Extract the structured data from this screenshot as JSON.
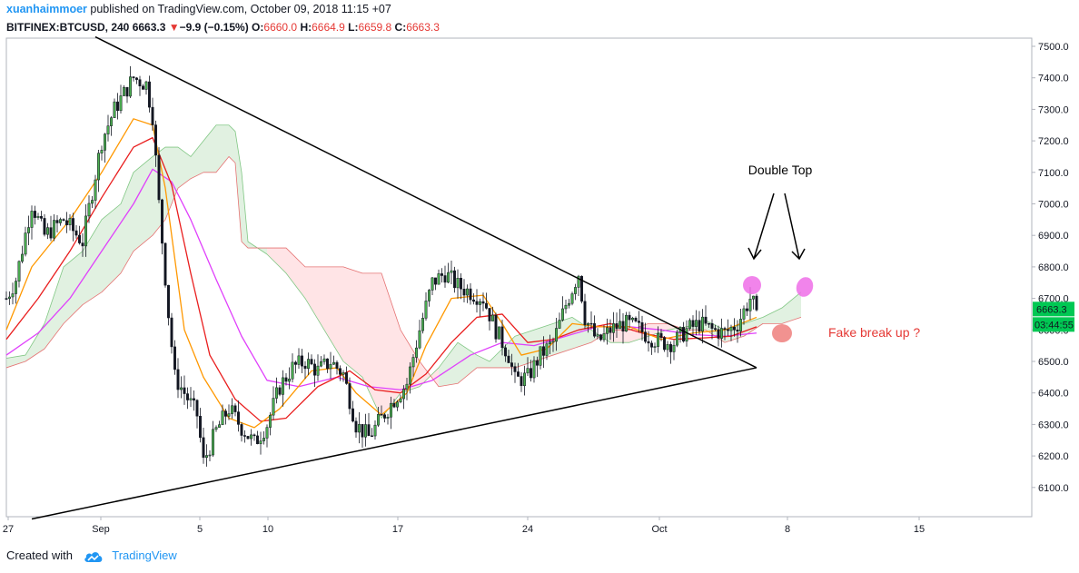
{
  "header": {
    "author": "xuanhaimmoer",
    "published_text": "published on TradingView.com, October 09, 2018 11:15 +07",
    "symbol": "BITFINEX:BTCUSD, 240",
    "last": "6663.3",
    "change_arrow": "▼",
    "change": "−9.9 (−0.15%)",
    "o_label": "O:",
    "o": "6660.0",
    "h_label": "H:",
    "h": "6664.9",
    "l_label": "L:",
    "l": "6659.8",
    "c_label": "C:",
    "c": "6663.3"
  },
  "footer": {
    "created_with": "Created with",
    "brand": "TradingView",
    "brand_icon": "tradingview-cloud-icon"
  },
  "colors": {
    "up": "#4caf50",
    "down": "#131722",
    "ema_fast": "#ff9800",
    "ema_mid": "#e91e1e",
    "ema_slow": "#e040fb",
    "cloud_bull": "#c8e6c9",
    "cloud_bear": "#ffcdd2",
    "price_label": "#00c853",
    "annotation_red": "#e53935",
    "marker_pink": "#ee6ee8"
  },
  "chart_data": {
    "type": "candlestick",
    "ylim": [
      6000,
      7550
    ],
    "y_ticks": [
      "7500.0",
      "7400.0",
      "7300.0",
      "7200.0",
      "7100.0",
      "7000.0",
      "6900.0",
      "6800.0",
      "6700.0",
      "6600.0",
      "6500.0",
      "6400.0",
      "6300.0",
      "6200.0",
      "6100.0"
    ],
    "x_ticks": [
      "27",
      "Sep",
      "5",
      "10",
      "17",
      "24",
      "Oct",
      "8",
      "15"
    ],
    "price_label": "6663.3",
    "countdown_label": "03:44:55",
    "annotations": {
      "double_top": "Double Top",
      "fake_breakout": "Fake break up ?"
    },
    "close_anchors": [
      [
        0,
        6700
      ],
      [
        3,
        6760
      ],
      [
        8,
        7000
      ],
      [
        12,
        6900
      ],
      [
        18,
        6950
      ],
      [
        24,
        6880
      ],
      [
        30,
        7200
      ],
      [
        34,
        7300
      ],
      [
        40,
        7400
      ],
      [
        44,
        7380
      ],
      [
        46,
        7280
      ],
      [
        48,
        7000
      ],
      [
        51,
        6650
      ],
      [
        53,
        6450
      ],
      [
        56,
        6400
      ],
      [
        60,
        6330
      ],
      [
        62,
        6180
      ],
      [
        66,
        6280
      ],
      [
        70,
        6350
      ],
      [
        74,
        6290
      ],
      [
        78,
        6240
      ],
      [
        82,
        6300
      ],
      [
        86,
        6420
      ],
      [
        90,
        6480
      ],
      [
        94,
        6500
      ],
      [
        98,
        6470
      ],
      [
        102,
        6500
      ],
      [
        106,
        6460
      ],
      [
        110,
        6300
      ],
      [
        114,
        6260
      ],
      [
        118,
        6320
      ],
      [
        122,
        6380
      ],
      [
        126,
        6430
      ],
      [
        130,
        6600
      ],
      [
        134,
        6750
      ],
      [
        138,
        6780
      ],
      [
        142,
        6740
      ],
      [
        146,
        6720
      ],
      [
        150,
        6700
      ],
      [
        154,
        6600
      ],
      [
        158,
        6520
      ],
      [
        160,
        6440
      ],
      [
        164,
        6450
      ],
      [
        168,
        6520
      ],
      [
        172,
        6560
      ],
      [
        176,
        6680
      ],
      [
        180,
        6780
      ],
      [
        182,
        6640
      ],
      [
        186,
        6560
      ],
      [
        190,
        6600
      ],
      [
        194,
        6620
      ],
      [
        198,
        6610
      ],
      [
        202,
        6580
      ],
      [
        206,
        6560
      ],
      [
        210,
        6560
      ],
      [
        214,
        6600
      ],
      [
        218,
        6620
      ],
      [
        222,
        6600
      ],
      [
        226,
        6590
      ],
      [
        230,
        6620
      ],
      [
        234,
        6700
      ],
      [
        236,
        6663
      ]
    ],
    "ema_fast": [
      [
        0,
        6600
      ],
      [
        8,
        6800
      ],
      [
        20,
        6950
      ],
      [
        30,
        7100
      ],
      [
        40,
        7270
      ],
      [
        46,
        7250
      ],
      [
        50,
        7050
      ],
      [
        56,
        6600
      ],
      [
        62,
        6450
      ],
      [
        70,
        6320
      ],
      [
        78,
        6290
      ],
      [
        86,
        6350
      ],
      [
        96,
        6470
      ],
      [
        104,
        6480
      ],
      [
        110,
        6400
      ],
      [
        118,
        6330
      ],
      [
        126,
        6400
      ],
      [
        132,
        6550
      ],
      [
        140,
        6700
      ],
      [
        150,
        6710
      ],
      [
        156,
        6620
      ],
      [
        162,
        6520
      ],
      [
        170,
        6540
      ],
      [
        178,
        6620
      ],
      [
        186,
        6610
      ],
      [
        196,
        6610
      ],
      [
        206,
        6570
      ],
      [
        216,
        6590
      ],
      [
        226,
        6600
      ],
      [
        236,
        6640
      ]
    ],
    "ema_mid": [
      [
        0,
        6570
      ],
      [
        10,
        6700
      ],
      [
        20,
        6850
      ],
      [
        30,
        7020
      ],
      [
        40,
        7180
      ],
      [
        46,
        7210
      ],
      [
        52,
        7060
      ],
      [
        58,
        6780
      ],
      [
        64,
        6520
      ],
      [
        72,
        6380
      ],
      [
        80,
        6310
      ],
      [
        88,
        6320
      ],
      [
        98,
        6420
      ],
      [
        108,
        6470
      ],
      [
        116,
        6410
      ],
      [
        124,
        6400
      ],
      [
        132,
        6460
      ],
      [
        140,
        6560
      ],
      [
        148,
        6640
      ],
      [
        156,
        6650
      ],
      [
        164,
        6560
      ],
      [
        172,
        6570
      ],
      [
        180,
        6600
      ],
      [
        190,
        6620
      ],
      [
        200,
        6590
      ],
      [
        210,
        6570
      ],
      [
        220,
        6575
      ],
      [
        228,
        6580
      ],
      [
        236,
        6610
      ]
    ],
    "ema_slow": [
      [
        0,
        6520
      ],
      [
        10,
        6590
      ],
      [
        20,
        6700
      ],
      [
        30,
        6850
      ],
      [
        40,
        7000
      ],
      [
        46,
        7110
      ],
      [
        52,
        7070
      ],
      [
        58,
        6950
      ],
      [
        66,
        6760
      ],
      [
        74,
        6580
      ],
      [
        82,
        6440
      ],
      [
        92,
        6420
      ],
      [
        104,
        6450
      ],
      [
        114,
        6420
      ],
      [
        124,
        6410
      ],
      [
        134,
        6440
      ],
      [
        146,
        6520
      ],
      [
        156,
        6560
      ],
      [
        166,
        6550
      ],
      [
        176,
        6580
      ],
      [
        186,
        6610
      ],
      [
        196,
        6610
      ],
      [
        206,
        6600
      ],
      [
        216,
        6585
      ],
      [
        226,
        6580
      ],
      [
        236,
        6590
      ]
    ],
    "cloud": [
      [
        0,
        6510,
        6480
      ],
      [
        6,
        6520,
        6500
      ],
      [
        12,
        6620,
        6540
      ],
      [
        18,
        6800,
        6620
      ],
      [
        24,
        6850,
        6680
      ],
      [
        30,
        6950,
        6720
      ],
      [
        36,
        7000,
        6780
      ],
      [
        40,
        7100,
        6850
      ],
      [
        46,
        7150,
        6900
      ],
      [
        50,
        7180,
        6950
      ],
      [
        54,
        7180,
        7050
      ],
      [
        58,
        7150,
        7080
      ],
      [
        62,
        7200,
        7100
      ],
      [
        66,
        7250,
        7100
      ],
      [
        70,
        7250,
        7150
      ],
      [
        72,
        7230,
        7130
      ],
      [
        74,
        7100,
        6880
      ],
      [
        76,
        6880,
        6860
      ],
      [
        82,
        6840,
        6860
      ],
      [
        88,
        6780,
        6860
      ],
      [
        94,
        6700,
        6800
      ],
      [
        100,
        6600,
        6800
      ],
      [
        106,
        6500,
        6800
      ],
      [
        112,
        6450,
        6780
      ],
      [
        118,
        6320,
        6780
      ],
      [
        124,
        6400,
        6600
      ],
      [
        130,
        6420,
        6500
      ],
      [
        136,
        6480,
        6420
      ],
      [
        142,
        6560,
        6430
      ],
      [
        148,
        6520,
        6480
      ],
      [
        152,
        6500,
        6480
      ],
      [
        156,
        6540,
        6480
      ],
      [
        160,
        6580,
        6480
      ],
      [
        166,
        6600,
        6500
      ],
      [
        172,
        6620,
        6520
      ],
      [
        178,
        6640,
        6540
      ],
      [
        184,
        6600,
        6560
      ],
      [
        190,
        6560,
        6600
      ],
      [
        196,
        6560,
        6600
      ],
      [
        202,
        6580,
        6620
      ],
      [
        208,
        6600,
        6620
      ],
      [
        214,
        6610,
        6600
      ],
      [
        220,
        6630,
        6600
      ],
      [
        226,
        6600,
        6560
      ],
      [
        232,
        6620,
        6580
      ],
      [
        238,
        6640,
        6620
      ],
      [
        244,
        6670,
        6620
      ],
      [
        250,
        6720,
        6640
      ]
    ],
    "trendlines": {
      "upper": [
        [
          28,
          7530
        ],
        [
          236,
          6480
        ]
      ],
      "lower": [
        [
          8,
          6000
        ],
        [
          236,
          6480
        ]
      ]
    }
  }
}
